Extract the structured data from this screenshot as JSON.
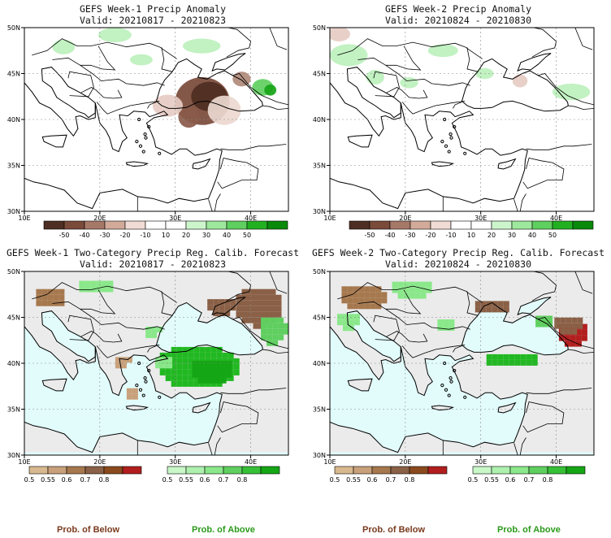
{
  "panels": [
    {
      "title": "GEFS Week-1 Precip Anomaly",
      "valid": "Valid: 20210817 - 20210823",
      "kind": "anom",
      "features": [
        {
          "lon": 33.6,
          "lat": 42.0,
          "rx": 3.6,
          "ry": 2.6,
          "color": "#7a4a3a"
        },
        {
          "lon": 34.5,
          "lat": 42.5,
          "rx": 2.4,
          "ry": 1.6,
          "color": "#4e2e22"
        },
        {
          "lon": 31.8,
          "lat": 40.3,
          "rx": 1.4,
          "ry": 1.2,
          "color": "#8a5a4a"
        },
        {
          "lon": 29.0,
          "lat": 41.5,
          "rx": 2.0,
          "ry": 1.2,
          "color": "#e6ccc4"
        },
        {
          "lon": 36.5,
          "lat": 41.0,
          "rx": 2.2,
          "ry": 1.6,
          "color": "#ecd8d0"
        },
        {
          "lon": 38.8,
          "lat": 44.4,
          "rx": 1.2,
          "ry": 0.8,
          "color": "#b08a7a"
        },
        {
          "lon": 41.6,
          "lat": 43.5,
          "rx": 1.4,
          "ry": 0.9,
          "color": "#5fcf5f"
        },
        {
          "lon": 42.6,
          "lat": 43.2,
          "rx": 0.8,
          "ry": 0.6,
          "color": "#18a418"
        },
        {
          "lon": 15.2,
          "lat": 47.9,
          "rx": 1.5,
          "ry": 0.8,
          "color": "#bdf0bd"
        },
        {
          "lon": 22.0,
          "lat": 49.2,
          "rx": 2.2,
          "ry": 0.8,
          "color": "#bdf0bd"
        },
        {
          "lon": 33.5,
          "lat": 48.0,
          "rx": 2.5,
          "ry": 0.8,
          "color": "#bdf0bd"
        },
        {
          "lon": 25.5,
          "lat": 46.5,
          "rx": 1.5,
          "ry": 0.6,
          "color": "#bdf0bd"
        }
      ]
    },
    {
      "title": "GEFS Week-2 Precip Anomaly",
      "valid": "Valid: 20210824 - 20210830",
      "kind": "anom",
      "features": [
        {
          "lon": 11.2,
          "lat": 49.3,
          "rx": 1.5,
          "ry": 0.8,
          "color": "#e6ccc4"
        },
        {
          "lon": 12.5,
          "lat": 47.0,
          "rx": 2.5,
          "ry": 1.2,
          "color": "#bdf0bd"
        },
        {
          "lon": 16.0,
          "lat": 44.6,
          "rx": 1.2,
          "ry": 0.8,
          "color": "#bdf0bd"
        },
        {
          "lon": 20.5,
          "lat": 44.0,
          "rx": 1.2,
          "ry": 0.6,
          "color": "#bdf0bd"
        },
        {
          "lon": 35.2,
          "lat": 44.2,
          "rx": 1.0,
          "ry": 0.7,
          "color": "#e6ccc4"
        },
        {
          "lon": 30.5,
          "lat": 45.0,
          "rx": 1.2,
          "ry": 0.6,
          "color": "#bdf0bd"
        },
        {
          "lon": 42.0,
          "lat": 43.0,
          "rx": 2.5,
          "ry": 0.9,
          "color": "#bdf0bd"
        },
        {
          "lon": 25.0,
          "lat": 47.5,
          "rx": 2.0,
          "ry": 0.7,
          "color": "#bdf0bd"
        }
      ]
    },
    {
      "title": "GEFS Week-1 Two-Category Precip Reg. Calib. Forecast",
      "valid": "Valid: 20210817 - 20210823",
      "kind": "prob",
      "features": [
        {
          "lon": 32.6,
          "lat": 40.0,
          "rx": 5.4,
          "ry": 2.4,
          "color": "#21b821"
        },
        {
          "lon": 34.5,
          "lat": 39.5,
          "rx": 3.0,
          "ry": 1.4,
          "color": "#14a614"
        },
        {
          "lon": 28.0,
          "lat": 40.4,
          "rx": 1.4,
          "ry": 0.9,
          "color": "#8ae88a"
        },
        {
          "lon": 22.5,
          "lat": 40.5,
          "rx": 1.2,
          "ry": 0.8,
          "color": "#c8a07a"
        },
        {
          "lon": 23.8,
          "lat": 37.2,
          "rx": 1.0,
          "ry": 0.7,
          "color": "#c8a07a"
        },
        {
          "lon": 40.5,
          "lat": 46.5,
          "rx": 3.2,
          "ry": 2.2,
          "color": "#8a6046"
        },
        {
          "lon": 42.6,
          "lat": 44.0,
          "rx": 2.0,
          "ry": 1.6,
          "color": "#5fcf5f"
        },
        {
          "lon": 35.5,
          "lat": 46.6,
          "rx": 2.0,
          "ry": 1.0,
          "color": "#8a6046"
        },
        {
          "lon": 13.0,
          "lat": 47.5,
          "rx": 2.2,
          "ry": 1.2,
          "color": "#a6784e"
        },
        {
          "lon": 19.0,
          "lat": 48.8,
          "rx": 2.5,
          "ry": 0.8,
          "color": "#8ae88a"
        },
        {
          "lon": 26.5,
          "lat": 43.8,
          "rx": 1.2,
          "ry": 0.8,
          "color": "#8ae88a"
        }
      ]
    },
    {
      "title": "GEFS Week-2 Two-Category Precip Reg. Calib. Forecast",
      "valid": "Valid: 20210824 - 20210830",
      "kind": "prob",
      "features": [
        {
          "lon": 14.0,
          "lat": 47.5,
          "rx": 3.2,
          "ry": 1.5,
          "color": "#a6784e"
        },
        {
          "lon": 20.5,
          "lat": 48.5,
          "rx": 3.0,
          "ry": 1.0,
          "color": "#8ae88a"
        },
        {
          "lon": 12.0,
          "lat": 45.0,
          "rx": 1.8,
          "ry": 1.0,
          "color": "#8ae88a"
        },
        {
          "lon": 25.0,
          "lat": 44.5,
          "rx": 1.5,
          "ry": 0.9,
          "color": "#8ae88a"
        },
        {
          "lon": 33.6,
          "lat": 40.7,
          "rx": 3.6,
          "ry": 0.9,
          "color": "#21b821"
        },
        {
          "lon": 38.0,
          "lat": 45.0,
          "rx": 1.5,
          "ry": 0.8,
          "color": "#5fcf5f"
        },
        {
          "lon": 41.8,
          "lat": 43.6,
          "rx": 2.2,
          "ry": 1.3,
          "color": "#b21e1e"
        },
        {
          "lon": 41.0,
          "lat": 44.6,
          "rx": 2.0,
          "ry": 1.0,
          "color": "#8a6046"
        },
        {
          "lon": 31.0,
          "lat": 46.5,
          "rx": 2.5,
          "ry": 0.9,
          "color": "#8a6046"
        }
      ]
    }
  ],
  "axis": {
    "lon_labels": [
      "10E",
      "20E",
      "30E",
      "40E"
    ],
    "lat_labels": [
      "50N",
      "45N",
      "40N",
      "35N",
      "30N"
    ]
  },
  "anom_colorbar": {
    "colors": [
      "#4e2e22",
      "#7a4a3a",
      "#a67868",
      "#d2aa9a",
      "#f0dcd4",
      "#ffffff",
      "#ffffff",
      "#ccf5cc",
      "#9ee89e",
      "#5fcf5f",
      "#22b022",
      "#0a8a0a"
    ],
    "labels": [
      "-50",
      "-40",
      "-30",
      "-20",
      "-10",
      "10",
      "20",
      "30",
      "40",
      "50"
    ]
  },
  "below_colorbar": {
    "colors": [
      "#d8b88e",
      "#c8a07a",
      "#a6784e",
      "#8a6046",
      "#8a4a1e",
      "#b21e1e"
    ],
    "labels": [
      "0.5",
      "0.55",
      "0.6",
      "0.7",
      "0.8"
    ],
    "caption": "Prob. of Below"
  },
  "above_colorbar": {
    "colors": [
      "#c8f7c8",
      "#aef0ae",
      "#8ae88a",
      "#5fcf5f",
      "#36c036",
      "#14a614"
    ],
    "labels": [
      "0.5",
      "0.55",
      "0.6",
      "0.7",
      "0.8"
    ],
    "caption": "Prob. of Above"
  },
  "colors": {
    "sea_prob": "#e2fcfc",
    "land_prob": "#ebebeb",
    "below_caption": "#7a3a1e",
    "above_caption": "#2a9a1a"
  }
}
